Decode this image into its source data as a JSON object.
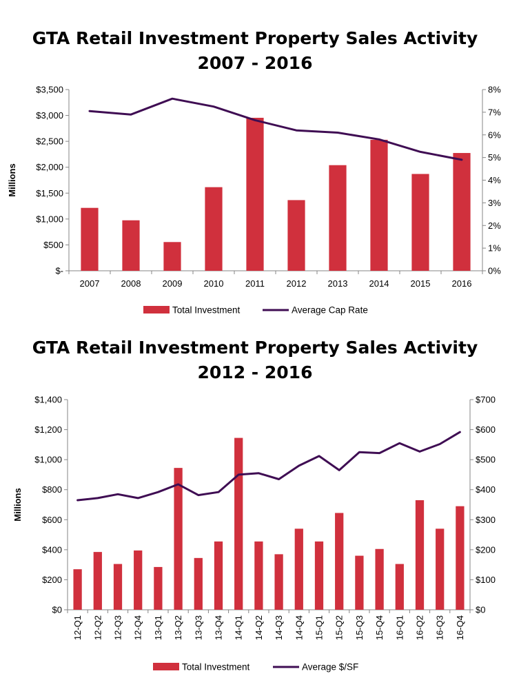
{
  "chart_data": [
    {
      "type": "bar",
      "title": "GTA Retail Investment Property Sales Activity",
      "subtitle": "2007 - 2016",
      "ylabel": "Millions",
      "y2label": "",
      "categories": [
        "2007",
        "2008",
        "2009",
        "2010",
        "2011",
        "2012",
        "2013",
        "2014",
        "2015",
        "2016"
      ],
      "ylim": [
        0,
        3500
      ],
      "y2lim": [
        0,
        8
      ],
      "y_ticks": [
        "$-",
        "$500",
        "$1,000",
        "$1,500",
        "$2,000",
        "$2,500",
        "$3,000",
        "$3,500"
      ],
      "y2_ticks": [
        "0%",
        "1%",
        "2%",
        "3%",
        "4%",
        "5%",
        "6%",
        "7%",
        "8%"
      ],
      "series": [
        {
          "name": "Total Investment",
          "type": "bar",
          "axis": "left",
          "color": "#d0303d",
          "values": [
            1215,
            975,
            555,
            1615,
            2955,
            1365,
            2040,
            2530,
            1870,
            2275
          ]
        },
        {
          "name": "Average Cap Rate",
          "type": "line",
          "axis": "right",
          "color": "#3f0d53",
          "values": [
            7.05,
            6.9,
            7.6,
            7.25,
            6.65,
            6.2,
            6.1,
            5.8,
            5.25,
            4.9
          ]
        }
      ],
      "legend_position": "bottom",
      "grid": false
    },
    {
      "type": "bar",
      "title": "GTA Retail Investment Property Sales Activity",
      "subtitle": "2012 - 2016",
      "ylabel": "Millions",
      "y2label": "",
      "categories": [
        "12-Q1",
        "12-Q2",
        "12-Q3",
        "12-Q4",
        "13-Q1",
        "13-Q2",
        "13-Q3",
        "13-Q4",
        "14-Q1",
        "14-Q2",
        "14-Q3",
        "14-Q4",
        "15-Q1",
        "15-Q2",
        "15-Q3",
        "15-Q4",
        "16-Q1",
        "16-Q2",
        "16-Q3",
        "16-Q4"
      ],
      "ylim": [
        0,
        1400
      ],
      "y2lim": [
        0,
        700
      ],
      "y_ticks": [
        "$0",
        "$200",
        "$400",
        "$600",
        "$800",
        "$1,000",
        "$1,200",
        "$1,400"
      ],
      "y2_ticks": [
        "$0",
        "$100",
        "$200",
        "$300",
        "$400",
        "$500",
        "$600",
        "$700"
      ],
      "series": [
        {
          "name": "Total Investment",
          "type": "bar",
          "axis": "left",
          "color": "#d0303d",
          "values": [
            270,
            385,
            305,
            395,
            285,
            945,
            345,
            455,
            1145,
            455,
            370,
            540,
            455,
            645,
            360,
            405,
            305,
            730,
            540,
            690
          ]
        },
        {
          "name": "Average $/SF",
          "type": "line",
          "axis": "right",
          "color": "#3f0d53",
          "values": [
            365,
            372,
            385,
            372,
            392,
            418,
            382,
            392,
            450,
            455,
            435,
            480,
            512,
            465,
            525,
            522,
            555,
            527,
            552,
            592
          ]
        }
      ],
      "legend_position": "bottom",
      "grid": false
    }
  ]
}
